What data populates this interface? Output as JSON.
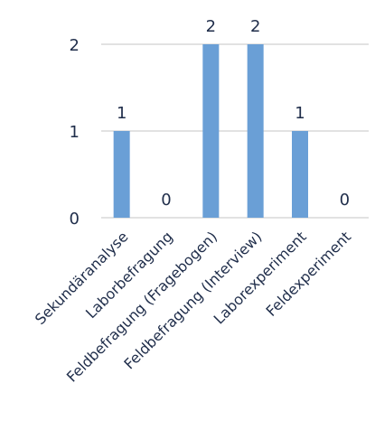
{
  "chart_data": {
    "type": "bar",
    "categories": [
      "Sekundäranalyse",
      "Laborbefragung",
      "Feldbefragung (Fragebogen)",
      "Feldbefragung (Interview)",
      "Laborexperiment",
      "Feldexperiment"
    ],
    "values": [
      1,
      0,
      2,
      2,
      1,
      0
    ],
    "yticks": [
      "0",
      "1",
      "2"
    ],
    "ylim": [
      0,
      2
    ],
    "grid": true,
    "legend": "none",
    "colors": {
      "bar": "#6a9fd6",
      "grid": "#d9d9d9",
      "text": "#1f2d4a"
    }
  }
}
